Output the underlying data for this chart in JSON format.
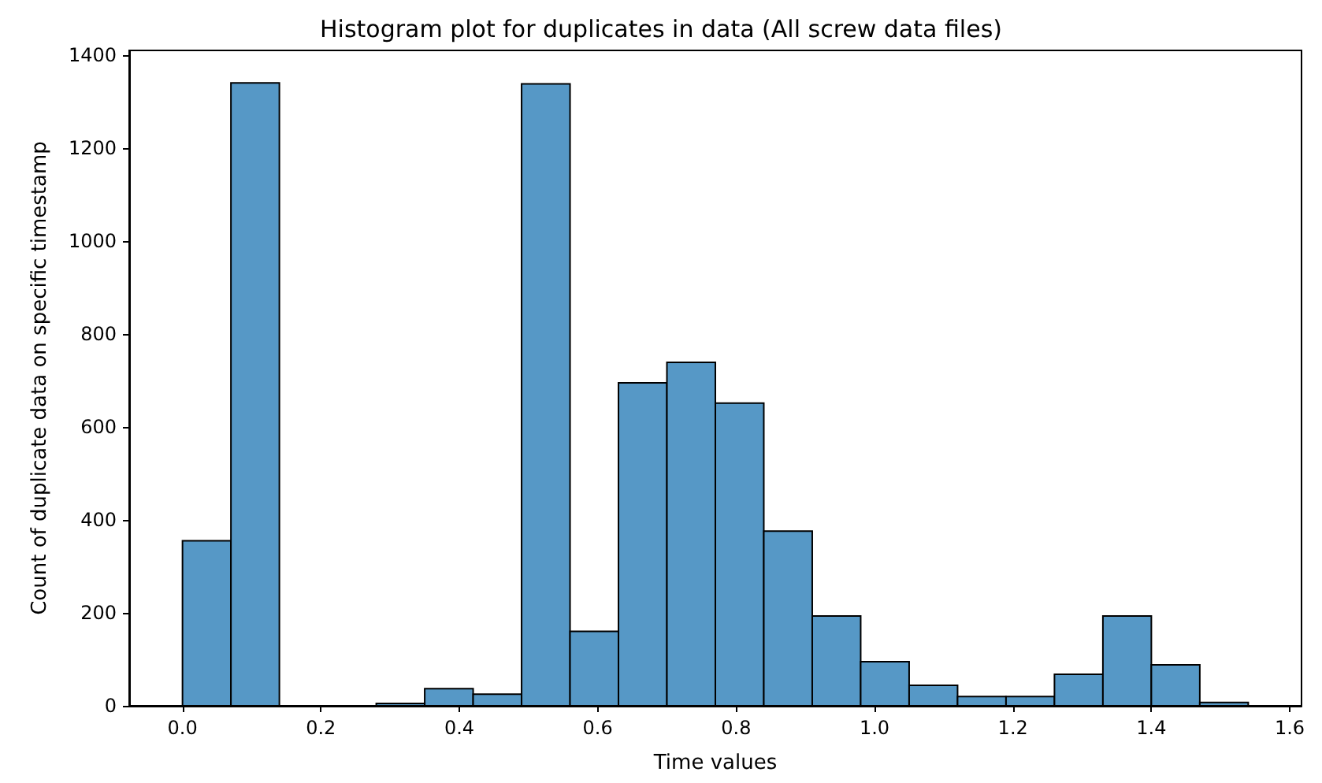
{
  "chart_data": {
    "type": "histogram",
    "title": "Histogram plot for duplicates in data (All screw data files)",
    "xlabel": "Time values",
    "ylabel": "Count of duplicate data on specific timestamp",
    "color": "#5698c6",
    "bins": [
      0,
      0.07,
      0.14,
      0.21,
      0.28,
      0.35,
      0.42,
      0.49,
      0.56,
      0.63,
      0.7,
      0.77,
      0.84,
      0.91,
      0.98,
      1.05,
      1.12,
      1.19,
      1.26,
      1.33,
      1.4,
      1.47,
      1.54
    ],
    "values": [
      355,
      1340,
      0,
      0,
      5,
      37,
      25,
      1338,
      160,
      695,
      739,
      651,
      376,
      193,
      95,
      44,
      20,
      20,
      68,
      193,
      88,
      7
    ],
    "xlim": [
      -0.077,
      1.617
    ],
    "xticks": [
      {
        "value": 0,
        "label": "0.0"
      },
      {
        "value": 0.2,
        "label": "0.2"
      },
      {
        "value": 0.4,
        "label": "0.4"
      },
      {
        "value": 0.6,
        "label": "0.6"
      },
      {
        "value": 0.8,
        "label": "0.8"
      },
      {
        "value": 1.0,
        "label": "1.0"
      },
      {
        "value": 1.2,
        "label": "1.2"
      },
      {
        "value": 1.4,
        "label": "1.4"
      },
      {
        "value": 1.6,
        "label": "1.6"
      }
    ],
    "ylim": [
      0,
      1410
    ],
    "yticks": [
      0,
      200,
      400,
      600,
      800,
      1000,
      1200,
      1400
    ],
    "grid": false
  }
}
